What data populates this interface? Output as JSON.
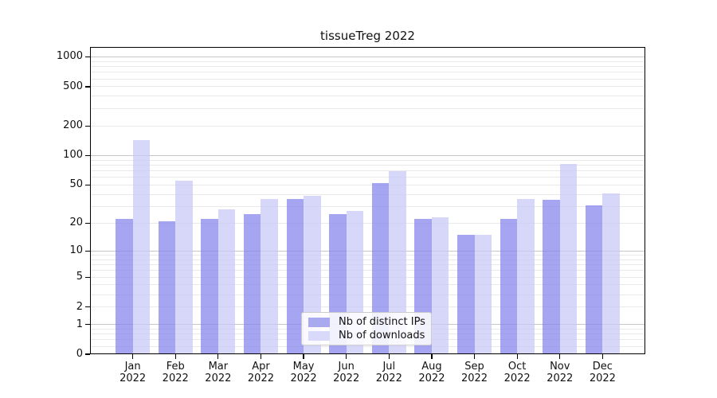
{
  "chart_data": {
    "type": "bar",
    "title": "tissueTreg 2022",
    "categories": [
      "Jan",
      "Feb",
      "Mar",
      "Apr",
      "May",
      "Jun",
      "Jul",
      "Aug",
      "Sep",
      "Oct",
      "Nov",
      "Dec"
    ],
    "year": "2022",
    "series": [
      {
        "name": "Nb of distinct IPs",
        "fill": "rgba(130,130,237,0.72)",
        "legend_color": "#a9a9f0",
        "values": [
          22,
          21,
          22,
          25,
          36,
          25,
          52,
          22,
          15,
          22,
          35,
          31
        ]
      },
      {
        "name": "Nb of downloads",
        "fill": "rgba(199,199,248,0.72)",
        "legend_color": "#d9d9f9",
        "values": [
          145,
          55,
          28,
          36,
          39,
          27,
          70,
          23,
          15,
          36,
          82,
          41
        ]
      }
    ],
    "yscale": "log1p",
    "yticks": [
      0,
      1,
      2,
      5,
      10,
      20,
      50,
      100,
      200,
      500,
      1000
    ],
    "ylim": [
      0,
      1280
    ],
    "grid": "major-and-minor",
    "major_grid_color": "#c6c6c6",
    "minor_grid_color": "#e9e9e9",
    "axis_color": "#000000",
    "legend_position": "lower-center"
  }
}
